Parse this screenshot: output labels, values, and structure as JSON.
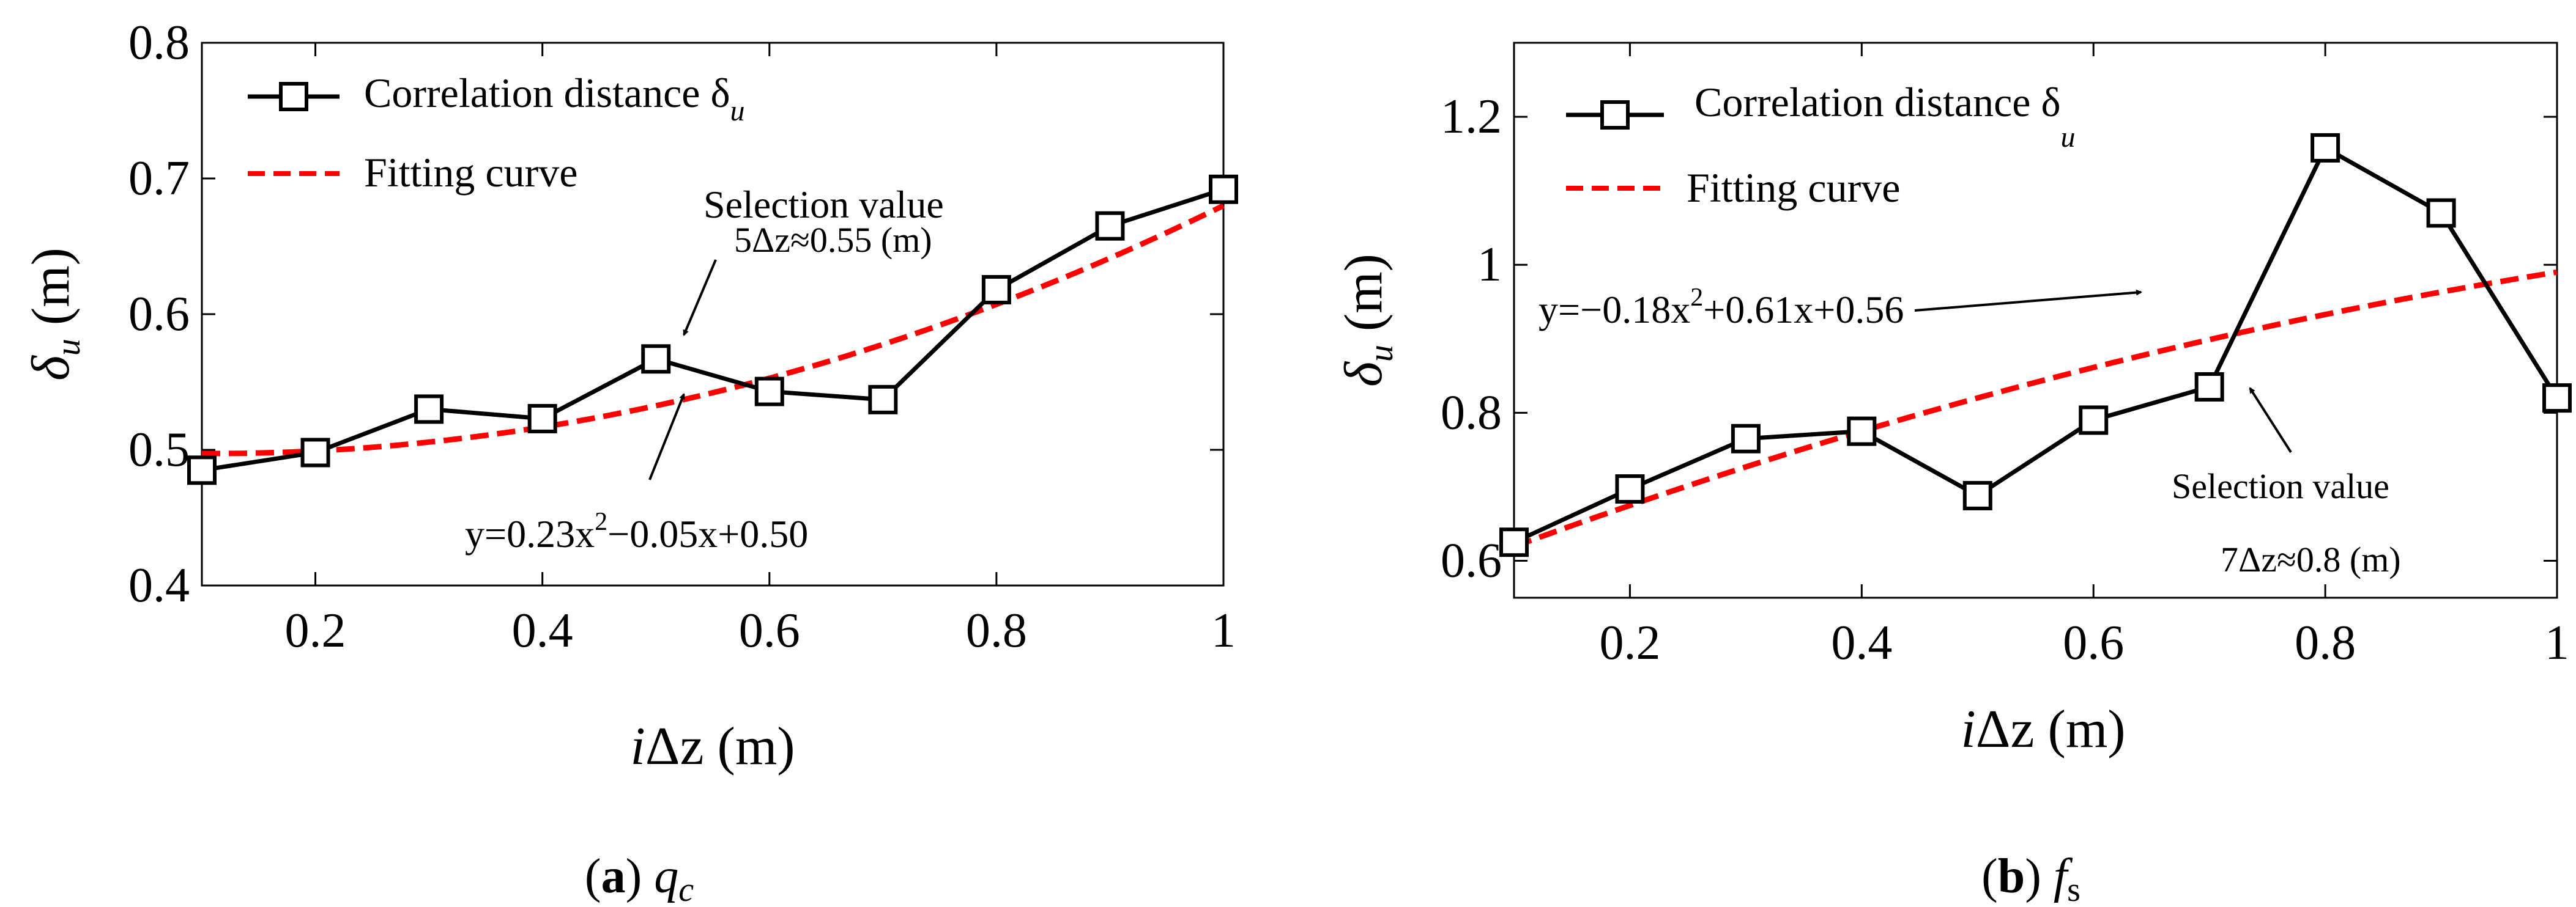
{
  "chart_data": [
    {
      "type": "line",
      "xlabel": "iΔz (m)",
      "ylabel": "δu (m)",
      "xlim": [
        0.1,
        1.0
      ],
      "ylim": [
        0.4,
        0.8
      ],
      "xticks": [
        "0.2",
        "0.4",
        "0.6",
        "0.8",
        "1"
      ],
      "yticks": [
        "0.4",
        "0.5",
        "0.6",
        "0.7",
        "0.8"
      ],
      "x": [
        0.1,
        0.2,
        0.3,
        0.4,
        0.5,
        0.6,
        0.7,
        0.8,
        0.9,
        1.0
      ],
      "series": [
        {
          "name": "Correlation distance δu",
          "values": [
            0.485,
            0.498,
            0.53,
            0.523,
            0.567,
            0.543,
            0.537,
            0.618,
            0.665,
            0.692
          ],
          "style": "solid",
          "marker": "square",
          "color": "#000000"
        },
        {
          "name": "Fitting curve",
          "formula": {
            "a": 0.23,
            "b": -0.05,
            "c": 0.5
          },
          "style": "dashed",
          "color": "#ff0000"
        }
      ],
      "annotations": [
        {
          "lines": [
            "Selection value",
            "5Δz≈0.55 (m)"
          ]
        },
        {
          "text": "y=0.23x2−0.05x+0.50"
        }
      ],
      "caption": {
        "letter": "a",
        "variable": "qc"
      }
    },
    {
      "type": "line",
      "xlabel": "iΔz (m)",
      "ylabel": "δu (m)",
      "xlim": [
        0.1,
        1.0
      ],
      "ylim": [
        0.55,
        1.3
      ],
      "xticks": [
        "0.2",
        "0.4",
        "0.6",
        "0.8",
        "1"
      ],
      "yticks": [
        "0.6",
        "0.8",
        "1",
        "1.2"
      ],
      "x": [
        0.1,
        0.2,
        0.3,
        0.4,
        0.5,
        0.6,
        0.7,
        0.8,
        0.9,
        1.0
      ],
      "series": [
        {
          "name": "Correlation distance δu",
          "values": [
            0.625,
            0.697,
            0.765,
            0.775,
            0.688,
            0.79,
            0.835,
            1.158,
            1.07,
            0.82
          ],
          "style": "solid",
          "marker": "square",
          "color": "#000000"
        },
        {
          "name": "Fitting curve",
          "formula": {
            "a": -0.18,
            "b": 0.61,
            "c": 0.56
          },
          "style": "dashed",
          "color": "#ff0000"
        }
      ],
      "annotations": [
        {
          "text": "y=−0.18x2+0.61x+0.56"
        },
        {
          "lines": [
            "Selection value",
            "7Δz≈0.8 (m)"
          ]
        }
      ],
      "caption": {
        "letter": "b",
        "variable": "fs"
      }
    }
  ],
  "labels": {
    "legend_main": "Correlation distance δ",
    "legend_sub": "u",
    "legend_fit": "Fitting curve",
    "x_italic": "i",
    "x_rest": "Δz (m)",
    "y_main": "δ",
    "y_sub": "u",
    "y_unit": " (m)",
    "sel_title": "Selection value",
    "a_sel_value": "5Δz≈0.55 (m)",
    "a_eq_pre": "y=0.23x",
    "a_eq_sup": "2",
    "a_eq_post": "−0.05x+0.50",
    "b_sel_value": "7Δz≈0.8 (m)",
    "b_eq_pre": "y=−0.18x",
    "b_eq_sup": "2",
    "b_eq_post": "+0.61x+0.56",
    "a_cap_open": "(",
    "a_cap_letter": "a",
    "a_cap_close": ") ",
    "a_cap_var": "q",
    "a_cap_sub": "c",
    "b_cap_open": "(",
    "b_cap_letter": "b",
    "b_cap_close": ") ",
    "b_cap_var": "f",
    "b_cap_sub": "s"
  },
  "colors": {
    "series": "#000000",
    "fit": "#ff0000",
    "axes": "#000000"
  }
}
